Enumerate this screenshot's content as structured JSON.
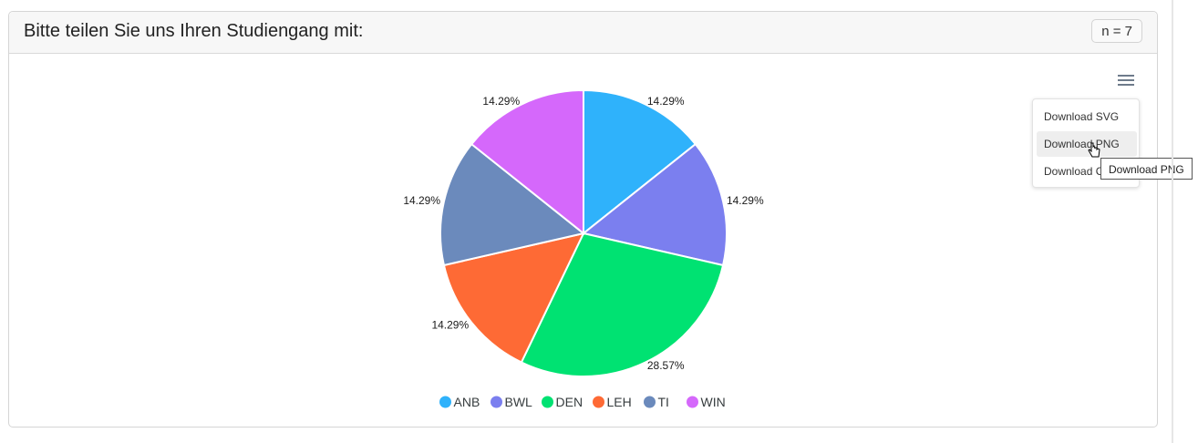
{
  "header": {
    "title": "Bitte teilen Sie uns Ihren Studiengang mit:",
    "n_badge": "n = 7"
  },
  "menu": {
    "icon": "hamburger-menu-icon",
    "items": [
      "Download SVG",
      "Download PNG",
      "Download CSV"
    ],
    "hovered_index": 1,
    "tooltip": "Download PNG"
  },
  "chart_data": {
    "type": "pie",
    "categories": [
      "ANB",
      "BWL",
      "DEN",
      "LEH",
      "TI",
      "WIN"
    ],
    "values": [
      14.29,
      14.29,
      28.57,
      14.29,
      14.29,
      14.29
    ],
    "labels": [
      "14.29%",
      "14.29%",
      "28.57%",
      "14.29%",
      "14.29%",
      "14.29%"
    ],
    "colors": [
      "#2fb2fb",
      "#7b7fef",
      "#00e272",
      "#fe6a35",
      "#6b8abc",
      "#d568fb"
    ],
    "legend_position": "bottom"
  }
}
